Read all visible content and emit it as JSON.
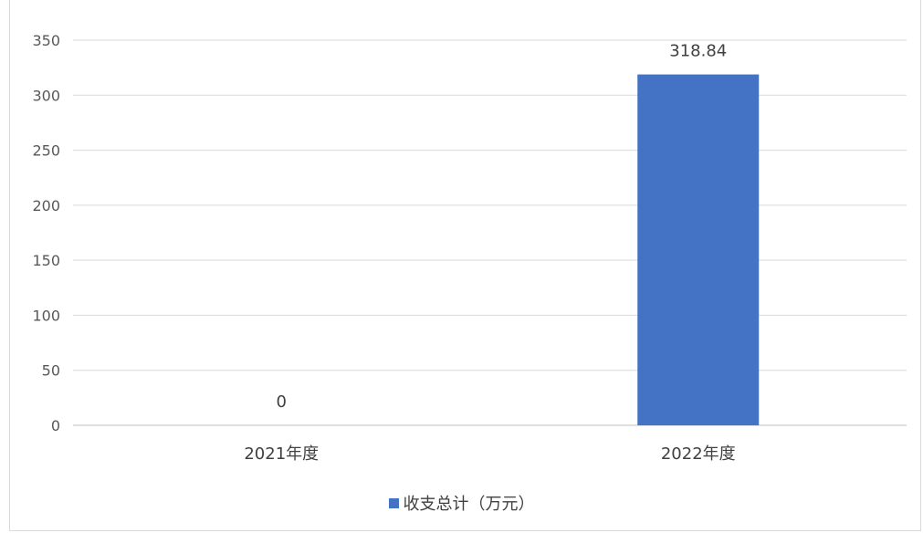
{
  "chart_data": {
    "type": "bar",
    "categories": [
      "2021年度",
      "2022年度"
    ],
    "series": [
      {
        "name": "收支总计（万元）",
        "values": [
          0,
          318.84
        ],
        "color": "#4472c4"
      }
    ],
    "data_labels": [
      "0",
      "318.84"
    ],
    "yticks": [
      "0",
      "50",
      "100",
      "150",
      "200",
      "250",
      "300",
      "350"
    ],
    "ylim": [
      0,
      350
    ],
    "grid": true,
    "legend": "bottom"
  }
}
